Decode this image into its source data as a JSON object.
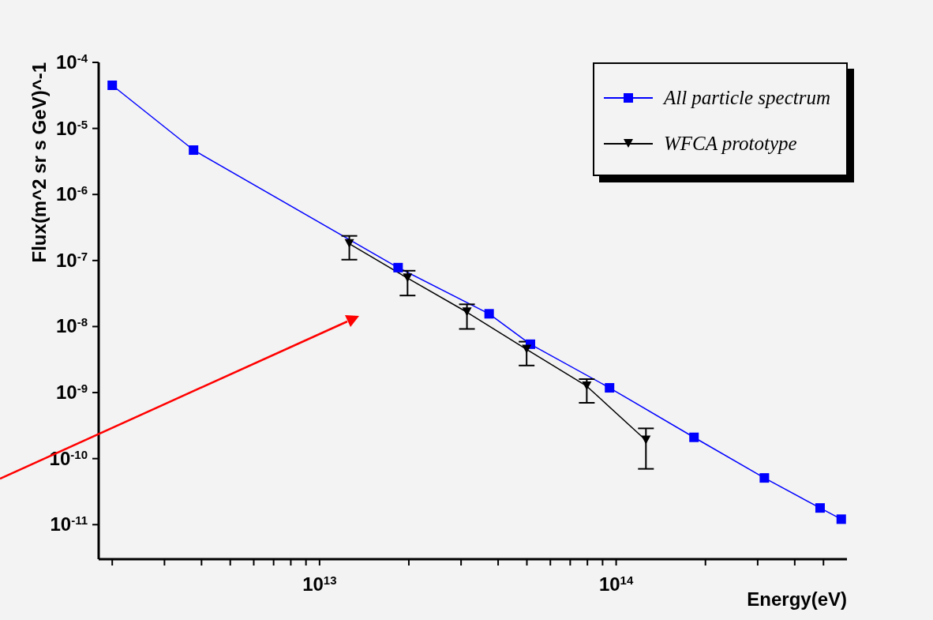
{
  "chart_data": {
    "type": "line",
    "xlabel": "Energy(eV)",
    "ylabel": "Flux(m^2 sr s GeV)^-1",
    "log": "xy",
    "grid": false,
    "legend": "top right",
    "xlim": [
      1800000000000.0,
      600000000000000.0
    ],
    "ylim": [
      3e-12,
      0.0001
    ],
    "xticks": [
      {
        "value": 2000000000000.0,
        "label": null
      },
      {
        "value": 3000000000000.0,
        "label": null
      },
      {
        "value": 4000000000000.0,
        "label": null
      },
      {
        "value": 5000000000000.0,
        "label": null
      },
      {
        "value": 6000000000000.0,
        "label": null
      },
      {
        "value": 7000000000000.0,
        "label": null
      },
      {
        "value": 8000000000000.0,
        "label": null
      },
      {
        "value": 9000000000000.0,
        "label": null
      },
      {
        "value": 10000000000000.0,
        "label": "10$^{13}$"
      },
      {
        "value": 20000000000000.0,
        "label": null
      },
      {
        "value": 30000000000000.0,
        "label": null
      },
      {
        "value": 40000000000000.0,
        "label": null
      },
      {
        "value": 50000000000000.0,
        "label": null
      },
      {
        "value": 60000000000000.0,
        "label": null
      },
      {
        "value": 70000000000000.0,
        "label": null
      },
      {
        "value": 80000000000000.0,
        "label": null
      },
      {
        "value": 90000000000000.0,
        "label": null
      },
      {
        "value": 100000000000000.0,
        "label": "10$^{14}$"
      },
      {
        "value": 200000000000000.0,
        "label": null
      },
      {
        "value": 300000000000000.0,
        "label": null
      },
      {
        "value": 400000000000000.0,
        "label": null
      },
      {
        "value": 500000000000000.0,
        "label": null
      }
    ],
    "yticks": [
      {
        "value": 1e-11,
        "label": "10$^{-11}$"
      },
      {
        "value": 1e-10,
        "label": "10$^{-10}$"
      },
      {
        "value": 1e-09,
        "label": "10$^{-9}$"
      },
      {
        "value": 1e-08,
        "label": "10$^{-8}$"
      },
      {
        "value": 1e-07,
        "label": "10$^{-7}$"
      },
      {
        "value": 1e-06,
        "label": "10$^{-6}$"
      },
      {
        "value": 1e-05,
        "label": "10$^{-5}$"
      },
      {
        "value": 0.0001,
        "label": "10$^{-4}$"
      }
    ],
    "series": [
      {
        "name": "All particle spectrum",
        "color": "#0000ff",
        "marker": "square",
        "x": [
          2000000000000.0,
          3760000000000.0,
          18400000000000.0,
          37300000000000.0,
          51400000000000.0,
          95000000000000.0,
          183000000000000.0,
          316000000000000.0,
          487000000000000.0,
          574000000000000.0
        ],
        "values": [
          4.5e-05,
          4.7e-06,
          7.8e-08,
          1.56e-08,
          5.4e-09,
          1.18e-09,
          2.1e-10,
          5.1e-11,
          1.79e-11,
          1.21e-11
        ]
      },
      {
        "name": "WFCA prototype",
        "color": "#000000",
        "marker": "triangle",
        "x": [
          12600000000000.0,
          19800000000000.0,
          31400000000000.0,
          49900000000000.0,
          79600000000000.0,
          126000000000000.0
        ],
        "values": [
          1.79e-07,
          5.4e-08,
          1.65e-08,
          4.5e-09,
          1.25e-09,
          1.89e-10
        ],
        "errors": [
          [
            1.03e-07,
            2.36e-07
          ],
          [
            2.95e-08,
            7e-08
          ],
          [
            9.2e-09,
            2.17e-08
          ],
          [
            2.57e-09,
            5.9e-09
          ],
          [
            7e-10,
            1.6e-09
          ],
          [
            7e-11,
            2.87e-10
          ]
        ]
      }
    ]
  }
}
